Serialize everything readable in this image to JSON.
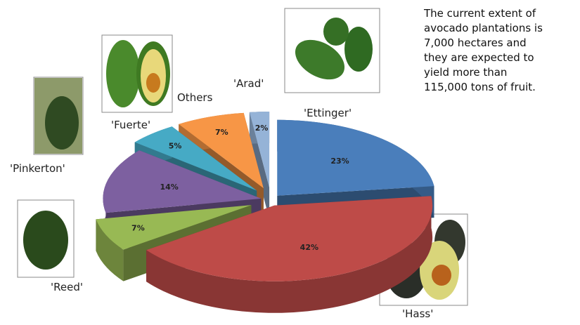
{
  "chart_data": {
    "type": "pie",
    "categories": [
      "'Ettinger'",
      "'Hass'",
      "'Reed'",
      "'Pinkerton'",
      "'Fuerte'",
      "Others",
      "'Arad'"
    ],
    "values": [
      23,
      42,
      7,
      14,
      5,
      7,
      2
    ],
    "value_labels": [
      "23%",
      "42%",
      "7%",
      "14%",
      "5%",
      "7%",
      "2%"
    ],
    "colors": [
      "#4a7ebb",
      "#be4b48",
      "#98b954",
      "#7d60a0",
      "#46aac5",
      "#f79646",
      "#95b3d7"
    ],
    "annotation_lines": [
      "The current extent of",
      "avocado plantations is",
      "7,000 hectares and",
      "they are expected to",
      "yield more than",
      "115,000 tons of fruit."
    ]
  }
}
